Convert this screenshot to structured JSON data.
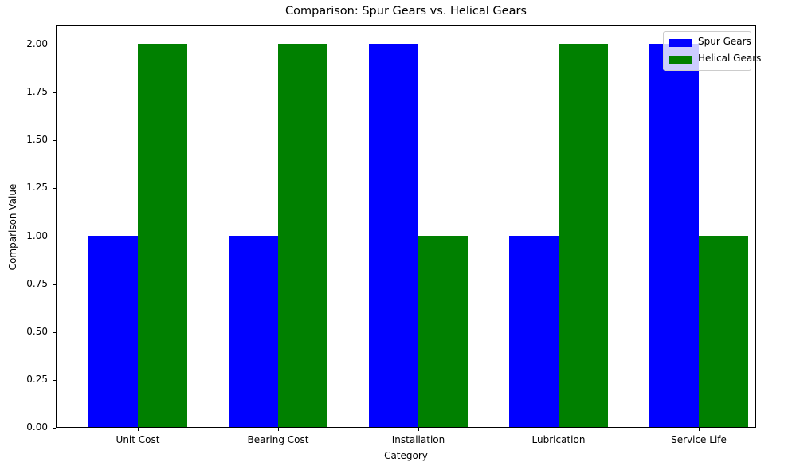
{
  "chart_data": {
    "type": "bar",
    "title": "Comparison: Spur Gears vs. Helical Gears",
    "xlabel": "Category",
    "ylabel": "Comparison Value",
    "categories": [
      "Unit Cost",
      "Bearing Cost",
      "Installation",
      "Lubrication",
      "Service Life"
    ],
    "series": [
      {
        "name": "Spur Gears",
        "color": "#0000ff",
        "values": [
          1,
          1,
          2,
          1,
          2
        ]
      },
      {
        "name": "Helical Gears",
        "color": "#008000",
        "values": [
          2,
          2,
          1,
          2,
          1
        ]
      }
    ],
    "ylim": [
      0,
      2.1
    ],
    "yticks": [
      "0.00",
      "0.25",
      "0.50",
      "0.75",
      "1.00",
      "1.25",
      "1.50",
      "1.75",
      "2.00"
    ],
    "grid": false,
    "legend_position": "upper right"
  }
}
